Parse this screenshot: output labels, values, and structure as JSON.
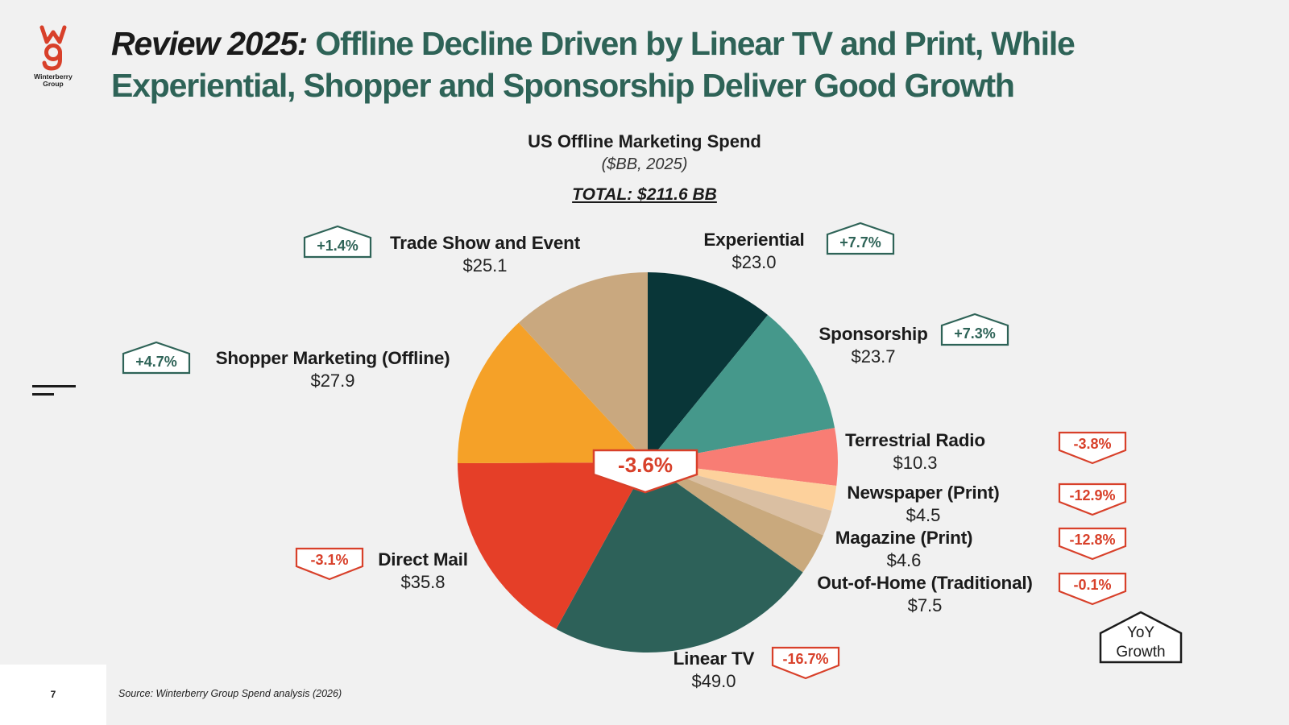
{
  "brand": {
    "name_line1": "Winterberry",
    "name_line2": "Group",
    "color": "#d8402a"
  },
  "header": {
    "title_lead": "Review 2025:",
    "title_rest": " Offline Decline Driven by Linear TV and Print, While Experiential, Shopper and Sponsorship Deliver Good Growth"
  },
  "chart_data": {
    "type": "pie",
    "title": "US Offline Marketing Spend",
    "subtitle": "($BB, 2025)",
    "total_label": "TOTAL: $211.6 BB",
    "overall_growth": "-3.6%",
    "legend_label": "YoY Growth",
    "slices": [
      {
        "name": "Experiential",
        "value": 23.0,
        "value_label": "$23.0",
        "growth": "+7.7%",
        "direction": "up",
        "color": "#093638"
      },
      {
        "name": "Sponsorship",
        "value": 23.7,
        "value_label": "$23.7",
        "growth": "+7.3%",
        "direction": "up",
        "color": "#45988b"
      },
      {
        "name": "Terrestrial Radio",
        "value": 10.3,
        "value_label": "$10.3",
        "growth": "-3.8%",
        "direction": "down",
        "color": "#f87d74"
      },
      {
        "name": "Newspaper (Print)",
        "value": 4.5,
        "value_label": "$4.5",
        "growth": "-12.9%",
        "direction": "down",
        "color": "#fdd19c"
      },
      {
        "name": "Magazine (Print)",
        "value": 4.6,
        "value_label": "$4.6",
        "growth": "-12.8%",
        "direction": "down",
        "color": "#dabfa2"
      },
      {
        "name": "Out-of-Home (Traditional)",
        "value": 7.5,
        "value_label": "$7.5",
        "growth": "-0.1%",
        "direction": "down",
        "color": "#c9a97d"
      },
      {
        "name": "Linear TV",
        "value": 49.0,
        "value_label": "$49.0",
        "growth": "-16.7%",
        "direction": "down",
        "color": "#2d6159"
      },
      {
        "name": "Direct Mail",
        "value": 35.8,
        "value_label": "$35.8",
        "growth": "-3.1%",
        "direction": "down",
        "color": "#e53f28"
      },
      {
        "name": "Shopper Marketing (Offline)",
        "value": 27.9,
        "value_label": "$27.9",
        "growth": "+4.7%",
        "direction": "up",
        "color": "#f5a128"
      },
      {
        "name": "Trade Show and Event",
        "value": 25.1,
        "value_label": "$25.1",
        "growth": "+1.4%",
        "direction": "up",
        "color": "#c9a87f"
      }
    ]
  },
  "footer": {
    "page_number": "7",
    "source": "Source: Winterberry Group Spend analysis (2026)"
  }
}
